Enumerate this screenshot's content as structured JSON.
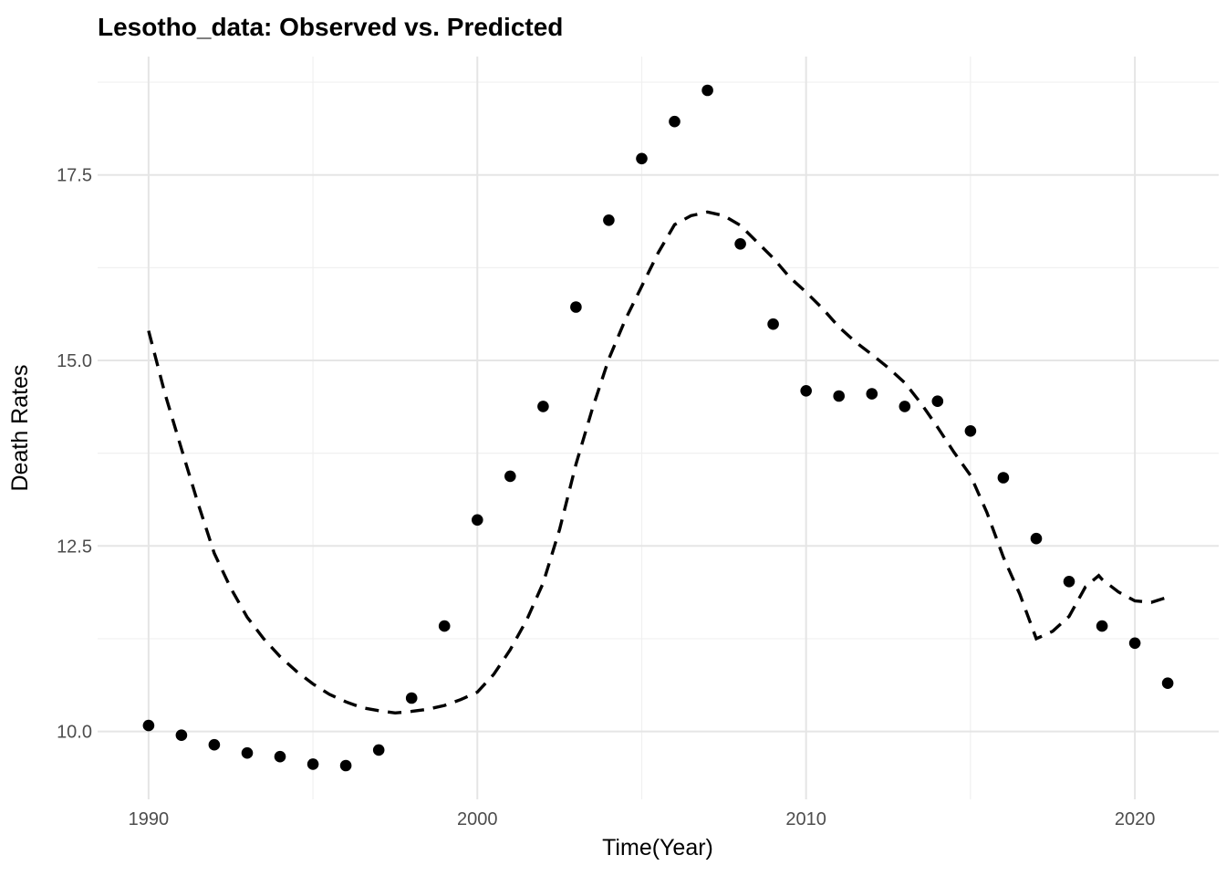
{
  "chart_data": {
    "type": "scatter",
    "title": "Lesotho_data: Observed vs. Predicted",
    "xlabel": "Time(Year)",
    "ylabel": "Death Rates",
    "xlim": [
      1988.45,
      2022.55
    ],
    "ylim": [
      9.085,
      19.095
    ],
    "grid": true,
    "legend_position": "none",
    "background": "#ffffff",
    "x_ticks_major": [
      1990,
      2000,
      2010,
      2020
    ],
    "x_tick_labels": [
      "1990",
      "2000",
      "2010",
      "2020"
    ],
    "x_ticks_minor": [
      1995,
      2005,
      2015
    ],
    "y_ticks_major": [
      10.0,
      12.5,
      15.0,
      17.5
    ],
    "y_tick_labels": [
      "10.0",
      "12.5",
      "15.0",
      "17.5"
    ],
    "y_ticks_minor": [
      11.25,
      13.75,
      16.25,
      18.75
    ],
    "series": [
      {
        "name": "Observed",
        "type": "scatter",
        "marker": "filled-circle",
        "color": "#000000",
        "x": [
          1990,
          1991,
          1992,
          1993,
          1994,
          1995,
          1996,
          1997,
          1998,
          1999,
          2000,
          2001,
          2002,
          2003,
          2004,
          2005,
          2006,
          2007,
          2008,
          2009,
          2010,
          2011,
          2012,
          2013,
          2014,
          2015,
          2016,
          2017,
          2018,
          2019,
          2020,
          2021
        ],
        "y": [
          10.08,
          9.95,
          9.82,
          9.71,
          9.66,
          9.56,
          9.54,
          9.75,
          10.45,
          11.42,
          12.85,
          13.44,
          14.38,
          15.72,
          16.89,
          17.72,
          18.22,
          18.64,
          16.57,
          15.49,
          14.59,
          14.52,
          14.55,
          14.38,
          14.45,
          14.05,
          13.42,
          12.6,
          12.02,
          11.42,
          11.19,
          10.65
        ]
      },
      {
        "name": "Predicted",
        "type": "line",
        "linestyle": "dashed",
        "color": "#000000",
        "x": [
          1990,
          1990.5,
          1991,
          1991.5,
          1992,
          1992.5,
          1993,
          1993.5,
          1994,
          1994.5,
          1995,
          1995.5,
          1996,
          1996.5,
          1997,
          1997.5,
          1998,
          1998.5,
          1999,
          1999.5,
          2000,
          2000.5,
          2001,
          2001.5,
          2002,
          2002.5,
          2003,
          2003.5,
          2004,
          2004.5,
          2005,
          2005.5,
          2006,
          2006.5,
          2007,
          2007.5,
          2008,
          2008.5,
          2009,
          2009.5,
          2010,
          2010.5,
          2011,
          2011.5,
          2012,
          2012.5,
          2013,
          2013.5,
          2014,
          2014.5,
          2015,
          2015.5,
          2016,
          2016.5,
          2017,
          2017.5,
          2018,
          2018.5,
          2018.9,
          2019,
          2019.5,
          2020,
          2020.5,
          2021
        ],
        "y": [
          15.4,
          14.55,
          13.81,
          13.08,
          12.4,
          11.93,
          11.54,
          11.25,
          11.01,
          10.81,
          10.64,
          10.5,
          10.4,
          10.32,
          10.28,
          10.25,
          10.27,
          10.3,
          10.35,
          10.43,
          10.53,
          10.77,
          11.1,
          11.5,
          12.0,
          12.72,
          13.6,
          14.35,
          15.02,
          15.55,
          16.0,
          16.45,
          16.83,
          16.95,
          17.0,
          16.95,
          16.82,
          16.6,
          16.38,
          16.12,
          15.92,
          15.7,
          15.45,
          15.25,
          15.08,
          14.9,
          14.7,
          14.42,
          14.1,
          13.76,
          13.45,
          12.95,
          12.35,
          11.85,
          11.25,
          11.35,
          11.55,
          11.95,
          12.1,
          12.05,
          11.88,
          11.76,
          11.74,
          11.81
        ]
      }
    ]
  },
  "colors": {
    "grid_major": "#e5e5e5",
    "grid_minor": "#f0f0f0",
    "tick_text": "#4d4d4d",
    "title_text": "#000000",
    "series": "#000000"
  }
}
